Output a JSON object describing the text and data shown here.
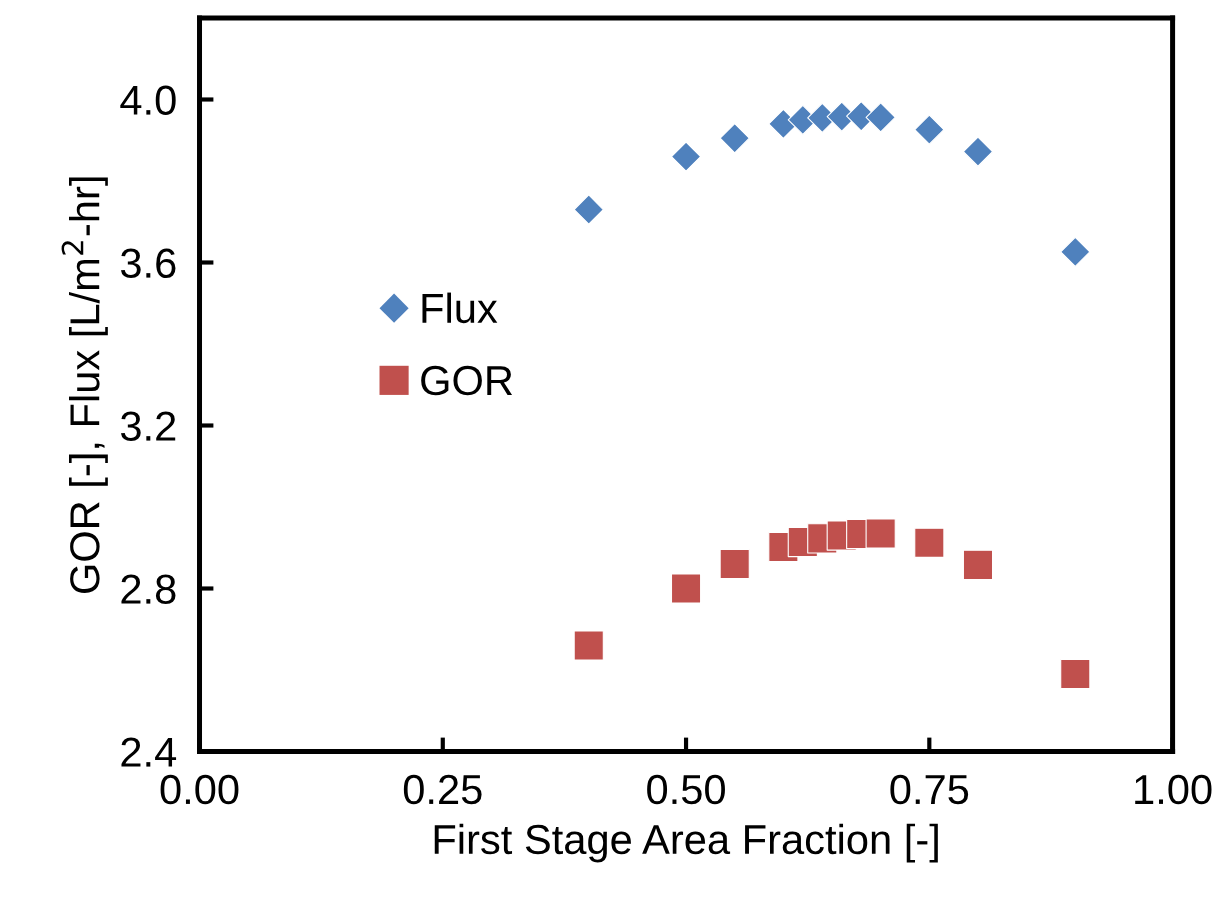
{
  "chart_data": {
    "type": "scatter",
    "xlabel": "First Stage Area Fraction [-]",
    "ylabel": "GOR [-], Flux [L/m$^{2}$-hr]",
    "xlim": [
      0,
      1
    ],
    "xticks": [
      {
        "value": 0,
        "label": "0.00"
      },
      0.25,
      {
        "value": 0.5,
        "label": "0.50"
      },
      0.75,
      {
        "value": 1,
        "label": "1.00"
      }
    ],
    "ylim": [
      2.4,
      4.2
    ],
    "yticks": [
      2.4,
      2.8,
      3.2,
      3.6,
      {
        "value": 4,
        "label": "4.0"
      }
    ],
    "grid": false,
    "legend": "left",
    "series": [
      {
        "name": "Flux",
        "color": "#4f81bd",
        "marker": "diamond",
        "x": [
          0.4,
          0.5,
          0.55,
          0.6,
          0.62,
          0.64,
          0.66,
          0.68,
          0.7,
          0.75,
          0.8,
          0.9
        ],
        "values": [
          3.73,
          3.86,
          3.905,
          3.94,
          3.95,
          3.955,
          3.958,
          3.959,
          3.956,
          3.926,
          3.872,
          3.626
        ]
      },
      {
        "name": "GOR",
        "color": "#c0504d",
        "marker": "square",
        "x": [
          0.4,
          0.5,
          0.55,
          0.6,
          0.62,
          0.64,
          0.66,
          0.68,
          0.7,
          0.75,
          0.8,
          0.9
        ],
        "values": [
          2.66,
          2.8,
          2.86,
          2.902,
          2.914,
          2.923,
          2.93,
          2.934,
          2.935,
          2.912,
          2.858,
          2.59
        ]
      }
    ]
  }
}
